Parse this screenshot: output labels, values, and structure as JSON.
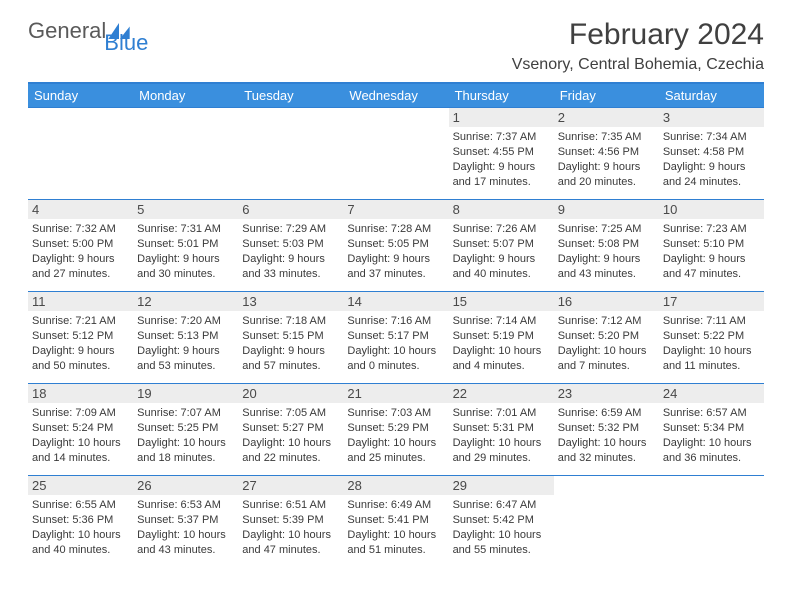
{
  "brand": {
    "part1": "General",
    "part2": "Blue"
  },
  "title": "February 2024",
  "location": "Vsenory, Central Bohemia, Czechia",
  "colors": {
    "brand_blue": "#2f7fd2",
    "header_blue": "#3a8fde",
    "daynum_bg": "#ededed",
    "text": "#333333",
    "border": "#2f7fd2"
  },
  "weekdays": [
    "Sunday",
    "Monday",
    "Tuesday",
    "Wednesday",
    "Thursday",
    "Friday",
    "Saturday"
  ],
  "weeks": [
    [
      null,
      null,
      null,
      null,
      {
        "day": "1",
        "sunrise": "Sunrise: 7:37 AM",
        "sunset": "Sunset: 4:55 PM",
        "d1": "Daylight: 9 hours",
        "d2": "and 17 minutes."
      },
      {
        "day": "2",
        "sunrise": "Sunrise: 7:35 AM",
        "sunset": "Sunset: 4:56 PM",
        "d1": "Daylight: 9 hours",
        "d2": "and 20 minutes."
      },
      {
        "day": "3",
        "sunrise": "Sunrise: 7:34 AM",
        "sunset": "Sunset: 4:58 PM",
        "d1": "Daylight: 9 hours",
        "d2": "and 24 minutes."
      }
    ],
    [
      {
        "day": "4",
        "sunrise": "Sunrise: 7:32 AM",
        "sunset": "Sunset: 5:00 PM",
        "d1": "Daylight: 9 hours",
        "d2": "and 27 minutes."
      },
      {
        "day": "5",
        "sunrise": "Sunrise: 7:31 AM",
        "sunset": "Sunset: 5:01 PM",
        "d1": "Daylight: 9 hours",
        "d2": "and 30 minutes."
      },
      {
        "day": "6",
        "sunrise": "Sunrise: 7:29 AM",
        "sunset": "Sunset: 5:03 PM",
        "d1": "Daylight: 9 hours",
        "d2": "and 33 minutes."
      },
      {
        "day": "7",
        "sunrise": "Sunrise: 7:28 AM",
        "sunset": "Sunset: 5:05 PM",
        "d1": "Daylight: 9 hours",
        "d2": "and 37 minutes."
      },
      {
        "day": "8",
        "sunrise": "Sunrise: 7:26 AM",
        "sunset": "Sunset: 5:07 PM",
        "d1": "Daylight: 9 hours",
        "d2": "and 40 minutes."
      },
      {
        "day": "9",
        "sunrise": "Sunrise: 7:25 AM",
        "sunset": "Sunset: 5:08 PM",
        "d1": "Daylight: 9 hours",
        "d2": "and 43 minutes."
      },
      {
        "day": "10",
        "sunrise": "Sunrise: 7:23 AM",
        "sunset": "Sunset: 5:10 PM",
        "d1": "Daylight: 9 hours",
        "d2": "and 47 minutes."
      }
    ],
    [
      {
        "day": "11",
        "sunrise": "Sunrise: 7:21 AM",
        "sunset": "Sunset: 5:12 PM",
        "d1": "Daylight: 9 hours",
        "d2": "and 50 minutes."
      },
      {
        "day": "12",
        "sunrise": "Sunrise: 7:20 AM",
        "sunset": "Sunset: 5:13 PM",
        "d1": "Daylight: 9 hours",
        "d2": "and 53 minutes."
      },
      {
        "day": "13",
        "sunrise": "Sunrise: 7:18 AM",
        "sunset": "Sunset: 5:15 PM",
        "d1": "Daylight: 9 hours",
        "d2": "and 57 minutes."
      },
      {
        "day": "14",
        "sunrise": "Sunrise: 7:16 AM",
        "sunset": "Sunset: 5:17 PM",
        "d1": "Daylight: 10 hours",
        "d2": "and 0 minutes."
      },
      {
        "day": "15",
        "sunrise": "Sunrise: 7:14 AM",
        "sunset": "Sunset: 5:19 PM",
        "d1": "Daylight: 10 hours",
        "d2": "and 4 minutes."
      },
      {
        "day": "16",
        "sunrise": "Sunrise: 7:12 AM",
        "sunset": "Sunset: 5:20 PM",
        "d1": "Daylight: 10 hours",
        "d2": "and 7 minutes."
      },
      {
        "day": "17",
        "sunrise": "Sunrise: 7:11 AM",
        "sunset": "Sunset: 5:22 PM",
        "d1": "Daylight: 10 hours",
        "d2": "and 11 minutes."
      }
    ],
    [
      {
        "day": "18",
        "sunrise": "Sunrise: 7:09 AM",
        "sunset": "Sunset: 5:24 PM",
        "d1": "Daylight: 10 hours",
        "d2": "and 14 minutes."
      },
      {
        "day": "19",
        "sunrise": "Sunrise: 7:07 AM",
        "sunset": "Sunset: 5:25 PM",
        "d1": "Daylight: 10 hours",
        "d2": "and 18 minutes."
      },
      {
        "day": "20",
        "sunrise": "Sunrise: 7:05 AM",
        "sunset": "Sunset: 5:27 PM",
        "d1": "Daylight: 10 hours",
        "d2": "and 22 minutes."
      },
      {
        "day": "21",
        "sunrise": "Sunrise: 7:03 AM",
        "sunset": "Sunset: 5:29 PM",
        "d1": "Daylight: 10 hours",
        "d2": "and 25 minutes."
      },
      {
        "day": "22",
        "sunrise": "Sunrise: 7:01 AM",
        "sunset": "Sunset: 5:31 PM",
        "d1": "Daylight: 10 hours",
        "d2": "and 29 minutes."
      },
      {
        "day": "23",
        "sunrise": "Sunrise: 6:59 AM",
        "sunset": "Sunset: 5:32 PM",
        "d1": "Daylight: 10 hours",
        "d2": "and 32 minutes."
      },
      {
        "day": "24",
        "sunrise": "Sunrise: 6:57 AM",
        "sunset": "Sunset: 5:34 PM",
        "d1": "Daylight: 10 hours",
        "d2": "and 36 minutes."
      }
    ],
    [
      {
        "day": "25",
        "sunrise": "Sunrise: 6:55 AM",
        "sunset": "Sunset: 5:36 PM",
        "d1": "Daylight: 10 hours",
        "d2": "and 40 minutes."
      },
      {
        "day": "26",
        "sunrise": "Sunrise: 6:53 AM",
        "sunset": "Sunset: 5:37 PM",
        "d1": "Daylight: 10 hours",
        "d2": "and 43 minutes."
      },
      {
        "day": "27",
        "sunrise": "Sunrise: 6:51 AM",
        "sunset": "Sunset: 5:39 PM",
        "d1": "Daylight: 10 hours",
        "d2": "and 47 minutes."
      },
      {
        "day": "28",
        "sunrise": "Sunrise: 6:49 AM",
        "sunset": "Sunset: 5:41 PM",
        "d1": "Daylight: 10 hours",
        "d2": "and 51 minutes."
      },
      {
        "day": "29",
        "sunrise": "Sunrise: 6:47 AM",
        "sunset": "Sunset: 5:42 PM",
        "d1": "Daylight: 10 hours",
        "d2": "and 55 minutes."
      },
      null,
      null
    ]
  ]
}
